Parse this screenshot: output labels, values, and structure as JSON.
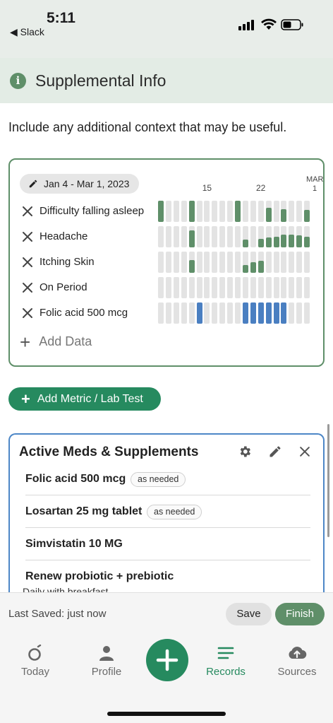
{
  "status_bar": {
    "time": "5:11",
    "back_app": "◀ Slack"
  },
  "section": {
    "icon": "info-icon",
    "info_glyph": "i",
    "title": "Supplemental Info"
  },
  "helper_text": "Include any additional context that may be useful.",
  "symptom_tracker": {
    "date_range": "Jan 4 - Mar 1, 2023",
    "day_labels": [
      {
        "label": "15",
        "col": 6
      },
      {
        "label": "22",
        "col": 13
      },
      {
        "label": "MAR\n1",
        "col": 20
      }
    ],
    "columns": 20,
    "rows": [
      {
        "label": "Difficulty falling asleep",
        "color": "#5f8f69",
        "levels": [
          1,
          0,
          0,
          0,
          1,
          0,
          0,
          0,
          0,
          0,
          1,
          0,
          0,
          0,
          0.65,
          0,
          0.6,
          0,
          0,
          0.55
        ]
      },
      {
        "label": "Headache",
        "color": "#5f8f69",
        "levels": [
          0,
          0,
          0,
          0,
          0.8,
          0,
          0,
          0,
          0,
          0,
          0,
          0.35,
          0,
          0.4,
          0.45,
          0.5,
          0.6,
          0.6,
          0.55,
          0.5
        ]
      },
      {
        "label": "Itching Skin",
        "color": "#5f8f69",
        "levels": [
          0,
          0,
          0,
          0,
          0.6,
          0,
          0,
          0,
          0,
          0,
          0,
          0.35,
          0.5,
          0.55,
          0,
          0,
          0,
          0,
          0,
          0
        ]
      },
      {
        "label": "On Period",
        "color": "#5f8f69",
        "levels": [
          0,
          0,
          0,
          0,
          0,
          0,
          0,
          0,
          0,
          0,
          0,
          0,
          0,
          0,
          0,
          0,
          0,
          0,
          0,
          0
        ]
      },
      {
        "label": "Folic acid 500 mcg",
        "color": "#4a7fc1",
        "levels": [
          0,
          0,
          0,
          0,
          0,
          1,
          0,
          0,
          0,
          0,
          0,
          1,
          1,
          1,
          1,
          1,
          1,
          0,
          0,
          0
        ]
      }
    ],
    "add_data_label": "Add Data"
  },
  "add_metric_label": "Add Metric / Lab Test",
  "meds": {
    "title": "Active Meds & Supplements",
    "icons": [
      "gear-icon",
      "pencil-icon",
      "close-icon"
    ],
    "items": [
      {
        "name": "Folic acid 500 mcg",
        "badge": "as needed"
      },
      {
        "name": "Losartan 25 mg tablet",
        "badge": "as needed"
      },
      {
        "name": "Simvistatin 10 MG",
        "badge": ""
      },
      {
        "name": "Renew probiotic + prebiotic",
        "badge": ""
      }
    ],
    "last_item_detail": "Daily with breakfast"
  },
  "save_bar": {
    "last_saved": "Last Saved: just now",
    "save_label": "Save",
    "finish_label": "Finish"
  },
  "tabs": [
    {
      "label": "Today",
      "icon": "today-icon",
      "active": false
    },
    {
      "label": "Profile",
      "icon": "profile-icon",
      "active": false
    },
    {
      "label": "Records",
      "icon": "records-icon",
      "active": true
    },
    {
      "label": "Sources",
      "icon": "cloud-upload-icon",
      "active": false
    }
  ],
  "colors": {
    "green": "#5f8f69",
    "accent": "#268a5f",
    "blue": "#4a7fc1"
  }
}
